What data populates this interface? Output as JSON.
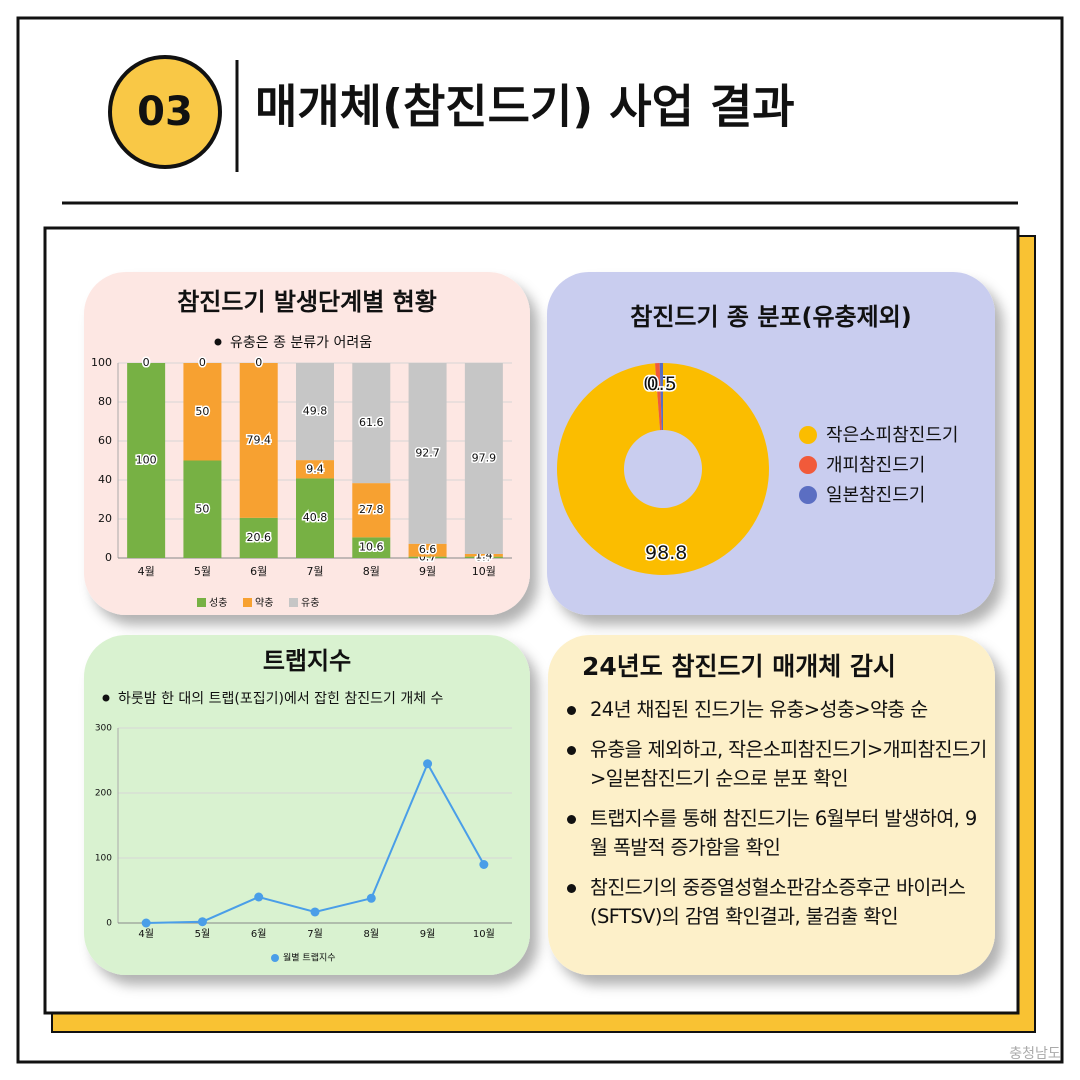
{
  "header": {
    "number": "03",
    "title": "매개체(참진드기) 사업 결과"
  },
  "chart_data": [
    {
      "type": "stacked_bar",
      "title": "참진드기 발생단계별 현황",
      "subtitle": "유충은 종 분류가 어려움",
      "categories": [
        "4월",
        "5월",
        "6월",
        "7월",
        "8월",
        "9월",
        "10월"
      ],
      "series": [
        {
          "name": "성충",
          "color": "#77b144",
          "values": [
            100,
            50,
            20.6,
            40.8,
            10.6,
            0.7,
            0.7
          ]
        },
        {
          "name": "약충",
          "color": "#f7a131",
          "values": [
            0,
            50,
            79.4,
            9.4,
            27.8,
            6.6,
            1.4
          ]
        },
        {
          "name": "유충",
          "color": "#c6c6c6",
          "values": [
            0,
            0,
            0,
            49.8,
            61.6,
            92.7,
            97.9
          ]
        }
      ],
      "ylim": [
        0,
        100
      ],
      "yticks": [
        0,
        20,
        40,
        60,
        80,
        100
      ],
      "grid": true
    },
    {
      "type": "donut",
      "title": "참진드기 종 분포(유충제외)",
      "categories": [
        "작은소피참진드기",
        "개피참진드기",
        "일본참진드기"
      ],
      "values": [
        98.8,
        0.7,
        0.5
      ],
      "colors": [
        "#fbbd00",
        "#f15a3a",
        "#5b6ec2"
      ]
    },
    {
      "type": "line",
      "title": "트랩지수",
      "subtitle": "하룻밤 한 대의 트랩(포집기)에서 잡힌 참진드기 개체 수",
      "categories": [
        "4월",
        "5월",
        "6월",
        "7월",
        "8월",
        "9월",
        "10월"
      ],
      "series": [
        {
          "name": "월별 트랩지수",
          "color": "#4a9ee8",
          "values": [
            0,
            2,
            40,
            17,
            38,
            245,
            90
          ]
        }
      ],
      "ylim": [
        0,
        300
      ],
      "yticks": [
        0,
        100,
        200,
        300
      ],
      "grid": true
    }
  ],
  "summary": {
    "title": "24년도 참진드기 매개체 감시",
    "items": [
      "24년 채집된 진드기는 유충>성충>약충 순",
      "유충을 제외하고, 작은소피참진드기>개피참진드기>일본참진드기 순으로 분포 확인",
      "트랩지수를 통해 참진드기는 6월부터 발생하여, 9월 폭발적 증가함을 확인",
      "참진드기의 중증열성혈소판감소증후군 바이러스(SFTSV)의 감염 확인결과, 불검출 확인"
    ]
  },
  "footer": {
    "logo": "충청남도"
  }
}
